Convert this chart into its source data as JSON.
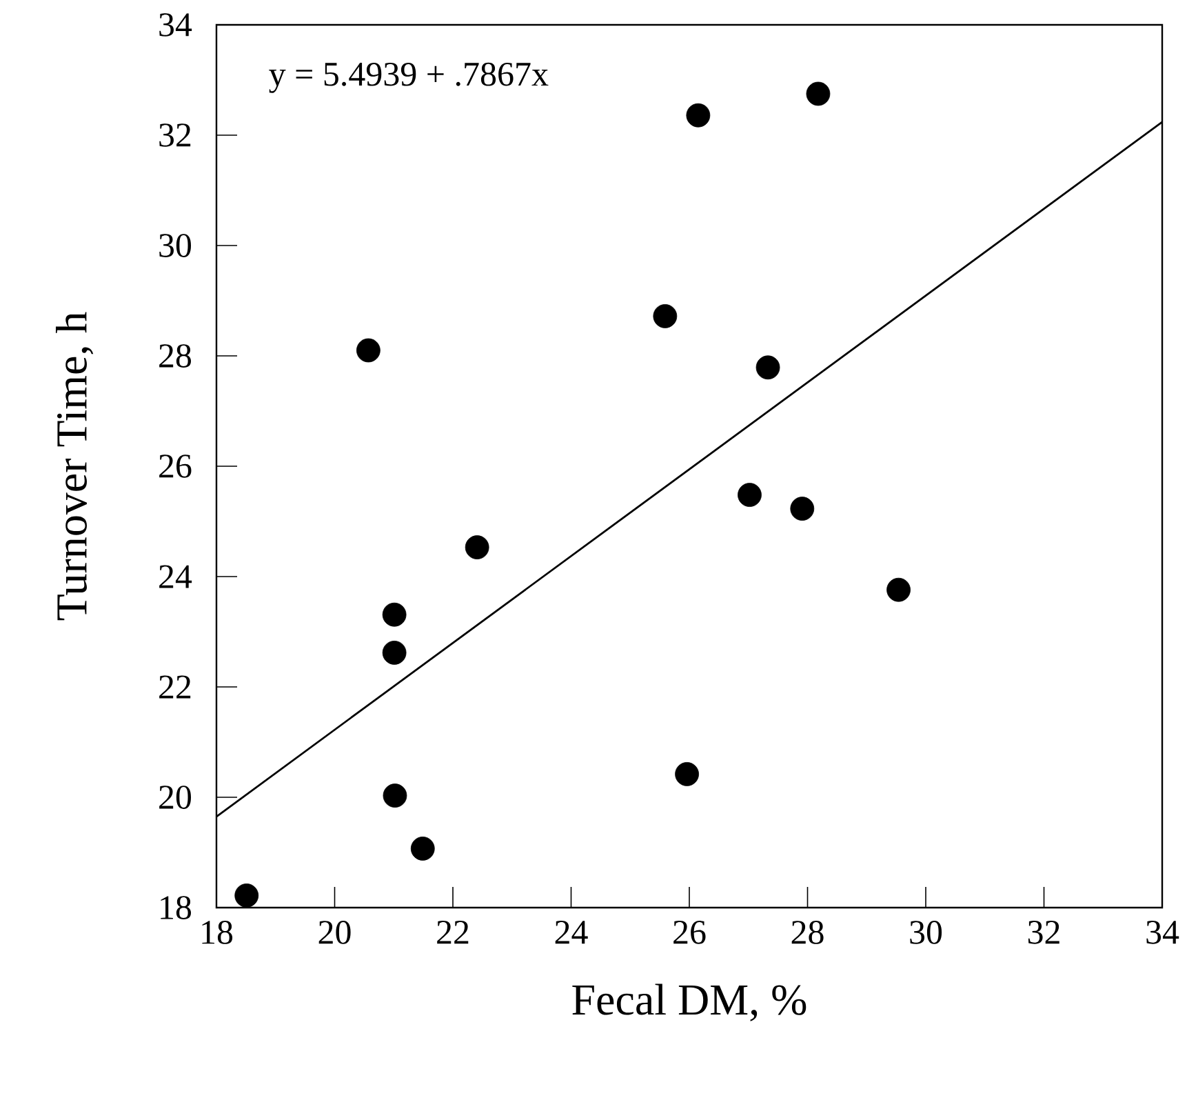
{
  "chart_data": {
    "type": "scatter",
    "xlabel": "Fecal DM, %",
    "ylabel": "Turnover Time, h",
    "annotations": [
      "y = 5.4939 + .7867x"
    ],
    "xlim": [
      18,
      34
    ],
    "ylim": [
      18,
      34
    ],
    "xticks": [
      18,
      20,
      22,
      24,
      26,
      28,
      30,
      32,
      34
    ],
    "yticks": [
      18,
      20,
      22,
      24,
      26,
      28,
      30,
      32,
      34
    ],
    "grid": false,
    "series": [
      {
        "color": "#000000",
        "marker": "circle",
        "x": [
          20.57,
          25.59,
          26.15,
          27.33,
          28.18,
          27.02,
          27.91,
          29.54,
          22.41,
          21.01,
          21.01,
          21.02,
          21.49,
          25.96,
          18.51
        ],
        "values": [
          28.1,
          28.72,
          32.36,
          27.79,
          32.75,
          25.48,
          25.23,
          23.76,
          24.53,
          23.31,
          22.62,
          20.03,
          19.07,
          20.42,
          18.22
        ]
      },
      {
        "type": "line",
        "color": "#000000",
        "marker": "none",
        "x": [
          18,
          34
        ],
        "values": [
          19.65,
          32.24
        ]
      }
    ]
  }
}
